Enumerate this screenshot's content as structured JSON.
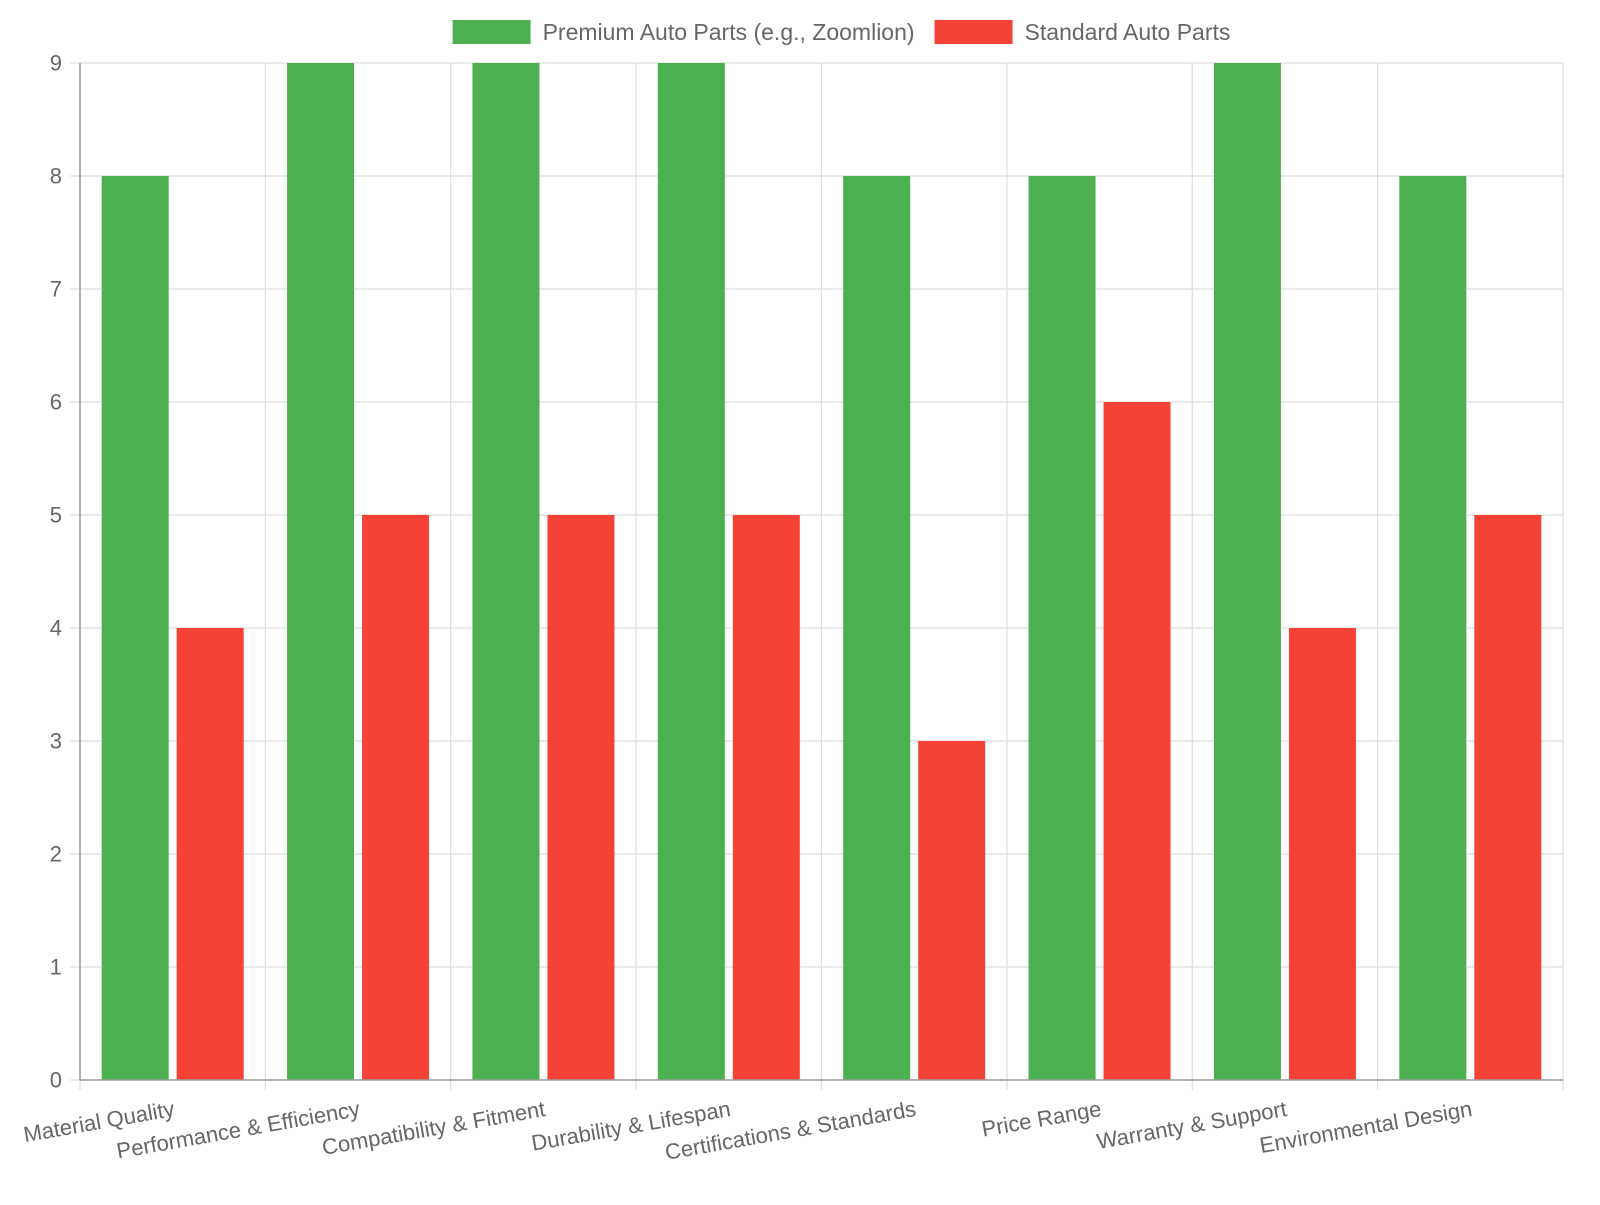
{
  "chart_data": {
    "type": "bar",
    "title": "",
    "xlabel": "",
    "ylabel": "",
    "ylim": [
      0,
      9
    ],
    "yticks": [
      0,
      1,
      2,
      3,
      4,
      5,
      6,
      7,
      8,
      9
    ],
    "grid": true,
    "legend_position": "top",
    "categories": [
      "Material Quality",
      "Performance & Efficiency",
      "Compatibility & Fitment",
      "Durability & Lifespan",
      "Certifications & Standards",
      "Price Range",
      "Warranty & Support",
      "Environmental Design"
    ],
    "series": [
      {
        "name": "Premium Auto Parts (e.g., Zoomlion)",
        "color": "#4caf50",
        "values": [
          8,
          9,
          9,
          9,
          8,
          8,
          9,
          8
        ]
      },
      {
        "name": "Standard Auto Parts",
        "color": "#f44336",
        "values": [
          4,
          5,
          5,
          5,
          3,
          6,
          4,
          5
        ]
      }
    ]
  }
}
